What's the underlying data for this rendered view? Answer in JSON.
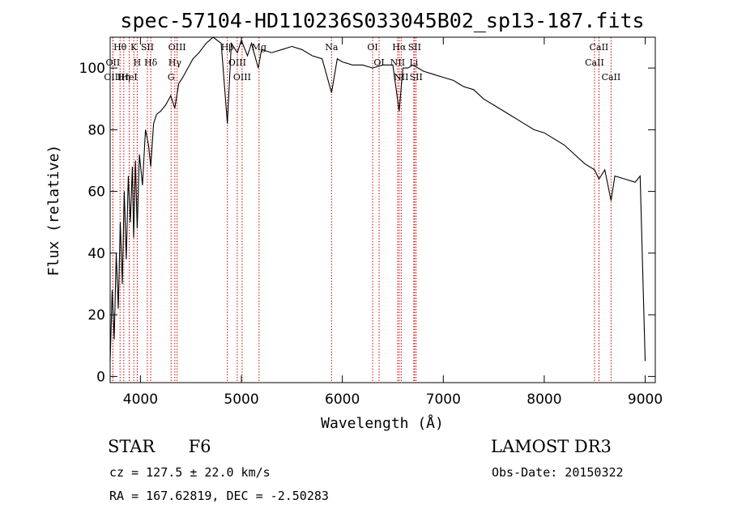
{
  "chart_data": {
    "type": "line",
    "title": "spec-57104-HD110236S033045B02_sp13-187.fits",
    "xlabel": "Wavelength (Å)",
    "ylabel": "Flux (relative)",
    "xlim": [
      3700,
      9100
    ],
    "ylim": [
      -2,
      110
    ],
    "xticks": [
      4000,
      5000,
      6000,
      7000,
      8000,
      9000
    ],
    "yticks": [
      0,
      20,
      40,
      60,
      80,
      100
    ],
    "series": [
      {
        "name": "flux",
        "x": [
          3700,
          3720,
          3740,
          3760,
          3780,
          3800,
          3820,
          3840,
          3860,
          3880,
          3900,
          3920,
          3933,
          3950,
          3968,
          3990,
          4020,
          4050,
          4080,
          4102,
          4130,
          4160,
          4200,
          4250,
          4300,
          4340,
          4380,
          4420,
          4470,
          4520,
          4580,
          4650,
          4720,
          4800,
          4861,
          4900,
          4960,
          5000,
          5060,
          5100,
          5167,
          5200,
          5300,
          5400,
          5500,
          5600,
          5700,
          5800,
          5893,
          5950,
          6000,
          6100,
          6200,
          6300,
          6400,
          6500,
          6563,
          6600,
          6650,
          6700,
          6800,
          6900,
          7000,
          7100,
          7200,
          7300,
          7400,
          7500,
          7600,
          7700,
          7800,
          7900,
          8000,
          8100,
          8200,
          8300,
          8400,
          8498,
          8542,
          8600,
          8662,
          8700,
          8800,
          8900,
          8950,
          9000
        ],
        "values": [
          5,
          28,
          12,
          40,
          22,
          50,
          30,
          60,
          38,
          65,
          50,
          68,
          45,
          70,
          48,
          72,
          62,
          80,
          75,
          68,
          82,
          85,
          86,
          88,
          91,
          87,
          95,
          97,
          100,
          103,
          105,
          108,
          110,
          108,
          82,
          108,
          105,
          109,
          104,
          108,
          100,
          106,
          105,
          106,
          107,
          106,
          104,
          103,
          92,
          103,
          102,
          101,
          101,
          100,
          101,
          101,
          86,
          100,
          100,
          101,
          99,
          98,
          97,
          96,
          94,
          93,
          90,
          88,
          86,
          84,
          82,
          80,
          79,
          77,
          75,
          72,
          69,
          67,
          64,
          67,
          57,
          65,
          64,
          63,
          65,
          5
        ]
      }
    ],
    "line_colors": {
      "spectrum": "#000000",
      "marker": "#cc0000"
    },
    "line_markers": [
      {
        "label": "Hθ",
        "wave": 3798
      },
      {
        "label": "OII",
        "wave": 3727
      },
      {
        "label": "OIII",
        "wave": 3727
      },
      {
        "label": "Hη",
        "wave": 3835
      },
      {
        "label": "HeI",
        "wave": 3889
      },
      {
        "label": "K",
        "wave": 3934
      },
      {
        "label": "H",
        "wave": 3968
      },
      {
        "label": "SII",
        "wave": 4069
      },
      {
        "label": "Hδ",
        "wave": 4102
      },
      {
        "label": "OIII",
        "wave": 4363
      },
      {
        "label": "Hγ",
        "wave": 4341
      },
      {
        "label": "G",
        "wave": 4304
      },
      {
        "label": "Hβ",
        "wave": 4861
      },
      {
        "label": "OIII",
        "wave": 4959
      },
      {
        "label": "OIII",
        "wave": 5007
      },
      {
        "label": "Mg",
        "wave": 5175
      },
      {
        "label": "Na",
        "wave": 5893
      },
      {
        "label": "OI",
        "wave": 6300
      },
      {
        "label": "OI",
        "wave": 6364
      },
      {
        "label": "Hα",
        "wave": 6563
      },
      {
        "label": "NII",
        "wave": 6548
      },
      {
        "label": "NII",
        "wave": 6583
      },
      {
        "label": "SII",
        "wave": 6716
      },
      {
        "label": "Li",
        "wave": 6708
      },
      {
        "label": "SII",
        "wave": 6731
      },
      {
        "label": "CaII",
        "wave": 8542
      },
      {
        "label": "CaII",
        "wave": 8498
      },
      {
        "label": "CaII",
        "wave": 8662
      }
    ]
  },
  "info": {
    "class": "STAR",
    "subclass": "F6",
    "survey": "LAMOST DR3",
    "redshift": "cz = 127.5 ± 22.0 km/s",
    "obs_date": "Obs-Date: 20150322",
    "coords": "RA = 167.62819, DEC =  -2.50283"
  }
}
